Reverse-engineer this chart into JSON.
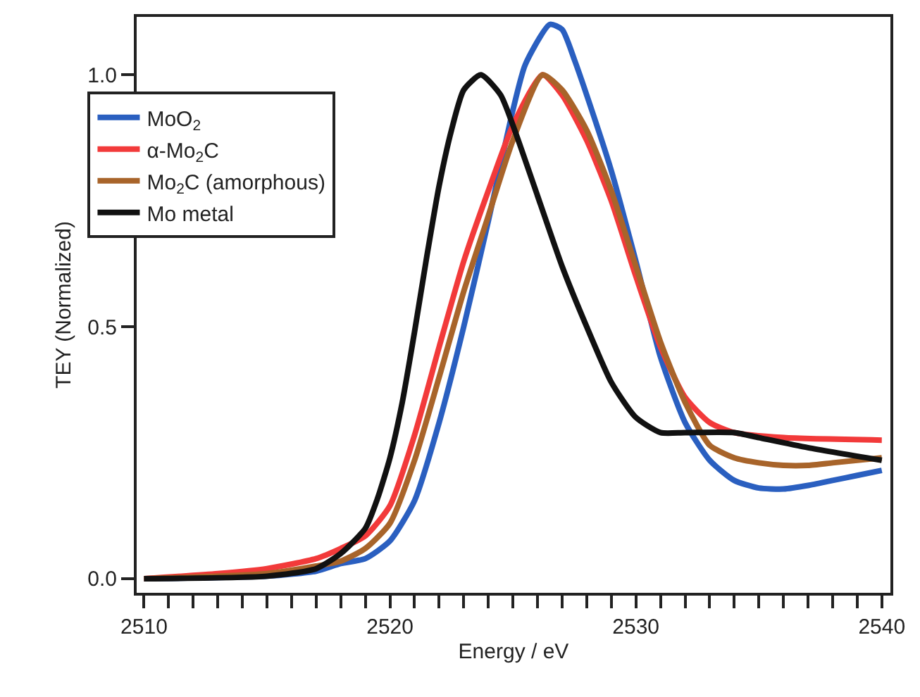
{
  "chart_data": {
    "type": "line",
    "xlabel": "Energy / eV",
    "ylabel": "TEY (Normalized)",
    "xlim": [
      2509.7,
      2540.35
    ],
    "ylim": [
      -0.028,
      1.115
    ],
    "xticks": [
      2510,
      {
        "value": 2511,
        "label": null
      },
      {
        "value": 2512,
        "label": null
      },
      {
        "value": 2513,
        "label": null
      },
      {
        "value": 2514,
        "label": null
      },
      {
        "value": 2515,
        "label": null
      },
      {
        "value": 2516,
        "label": null
      },
      {
        "value": 2517,
        "label": null
      },
      {
        "value": 2518,
        "label": null
      },
      {
        "value": 2519,
        "label": null
      },
      2520,
      {
        "value": 2521,
        "label": null
      },
      {
        "value": 2522,
        "label": null
      },
      {
        "value": 2523,
        "label": null
      },
      {
        "value": 2524,
        "label": null
      },
      {
        "value": 2525,
        "label": null
      },
      {
        "value": 2526,
        "label": null
      },
      {
        "value": 2527,
        "label": null
      },
      {
        "value": 2528,
        "label": null
      },
      {
        "value": 2529,
        "label": null
      },
      2530,
      {
        "value": 2531,
        "label": null
      },
      {
        "value": 2532,
        "label": null
      },
      {
        "value": 2533,
        "label": null
      },
      {
        "value": 2534,
        "label": null
      },
      {
        "value": 2535,
        "label": null
      },
      {
        "value": 2536,
        "label": null
      },
      {
        "value": 2537,
        "label": null
      },
      {
        "value": 2538,
        "label": null
      },
      {
        "value": 2539,
        "label": null
      },
      2540
    ],
    "yticks": [
      {
        "value": 0,
        "label": "0.0"
      },
      {
        "value": 0.5,
        "label": "0.5"
      },
      {
        "value": 1,
        "label": "1.0"
      }
    ],
    "grid": false,
    "legend": "top left",
    "marker": "none",
    "line_style": "solid",
    "series": [
      {
        "name": "MoO$_{2}$",
        "color": "#2a5fc0",
        "x": [
          2510,
          2515,
          2517,
          2518,
          2519,
          2520,
          2521,
          2522,
          2523,
          2524,
          2525,
          2525.5,
          2526.5,
          2527,
          2527.5,
          2528,
          2529,
          2530,
          2531,
          2532,
          2533,
          2534,
          2535,
          2536,
          2537,
          2538,
          2539,
          2540
        ],
        "values": [
          0,
          0.005,
          0.015,
          0.03,
          0.04,
          0.075,
          0.155,
          0.31,
          0.5,
          0.71,
          0.93,
          1.02,
          1.1,
          1.09,
          1.03,
          0.96,
          0.81,
          0.63,
          0.44,
          0.31,
          0.235,
          0.195,
          0.18,
          0.178,
          0.185,
          0.195,
          0.205,
          0.215
        ]
      },
      {
        "name": "α-Mo$_{2}$C",
        "color": "#f23a3a",
        "x": [
          2510,
          2513,
          2515,
          2517,
          2518,
          2519,
          2520,
          2521,
          2522,
          2523,
          2524,
          2525,
          2526.2,
          2527,
          2528,
          2529,
          2530,
          2531,
          2532,
          2533,
          2534,
          2536,
          2540
        ],
        "values": [
          0,
          0.01,
          0.02,
          0.04,
          0.06,
          0.085,
          0.145,
          0.285,
          0.46,
          0.63,
          0.77,
          0.9,
          1.0,
          0.96,
          0.87,
          0.75,
          0.6,
          0.46,
          0.36,
          0.31,
          0.29,
          0.28,
          0.275
        ]
      },
      {
        "name": "Mo$_{2}$C (amorphous)",
        "color": "#a8642a",
        "x": [
          2510,
          2515,
          2517,
          2518,
          2519,
          2520,
          2521,
          2522,
          2523,
          2524,
          2525,
          2526.2,
          2527,
          2528,
          2529,
          2530,
          2531,
          2532,
          2533,
          2534,
          2535,
          2536,
          2537,
          2538,
          2540
        ],
        "values": [
          0,
          0.01,
          0.025,
          0.035,
          0.06,
          0.11,
          0.235,
          0.4,
          0.57,
          0.72,
          0.87,
          1.0,
          0.97,
          0.89,
          0.77,
          0.62,
          0.47,
          0.35,
          0.265,
          0.24,
          0.23,
          0.225,
          0.225,
          0.23,
          0.24
        ]
      },
      {
        "name": "Mo metal",
        "color": "#111111",
        "x": [
          2510,
          2515,
          2517,
          2518,
          2519,
          2519.5,
          2520,
          2520.5,
          2521,
          2521.5,
          2522,
          2522.5,
          2523,
          2523.7,
          2524.5,
          2525,
          2526,
          2527,
          2528,
          2529,
          2530,
          2531,
          2532,
          2534,
          2535,
          2537,
          2540
        ],
        "values": [
          0,
          0.005,
          0.02,
          0.05,
          0.1,
          0.16,
          0.24,
          0.35,
          0.49,
          0.64,
          0.78,
          0.89,
          0.97,
          1.0,
          0.96,
          0.9,
          0.76,
          0.62,
          0.5,
          0.39,
          0.32,
          0.29,
          0.29,
          0.29,
          0.28,
          0.26,
          0.235
        ]
      }
    ]
  }
}
